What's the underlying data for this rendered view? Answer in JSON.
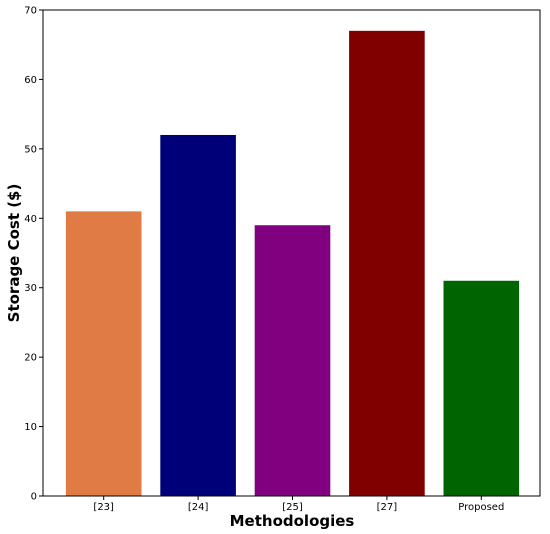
{
  "chart_data": {
    "type": "bar",
    "categories": [
      "[23]",
      "[24]",
      "[25]",
      "[27]",
      "Proposed"
    ],
    "values": [
      41,
      52,
      39,
      67,
      31
    ],
    "colors": [
      "#e07b45",
      "#000078",
      "#800080",
      "#800000",
      "#006400"
    ],
    "xlabel": "Methodologies",
    "ylabel": "Storage Cost ($)",
    "ylim": [
      0,
      70
    ],
    "yticks": [
      "0",
      "10",
      "20",
      "30",
      "40",
      "50",
      "60",
      "70"
    ],
    "grid": false,
    "legend": "none"
  }
}
